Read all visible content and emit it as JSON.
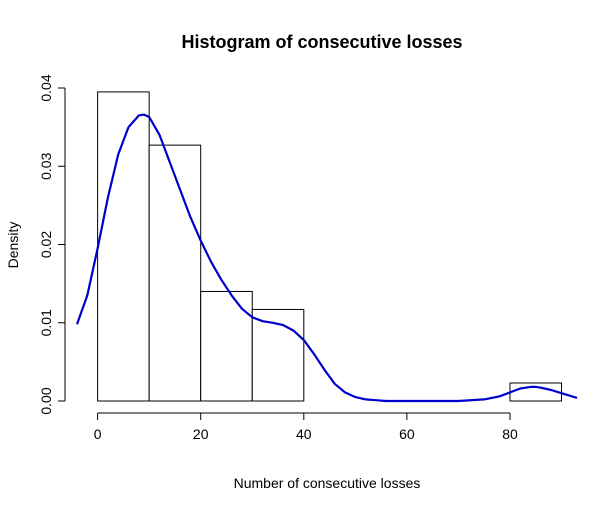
{
  "chart_data": {
    "type": "bar",
    "title": "Histogram of consecutive losses",
    "xlabel": "Number of consecutive losses",
    "ylabel": "Density",
    "xlim": [
      -4,
      93
    ],
    "ylim": [
      0,
      0.04
    ],
    "x_ticks": [
      "0",
      "20",
      "40",
      "60",
      "80"
    ],
    "y_ticks": [
      "0.00",
      "0.01",
      "0.02",
      "0.03",
      "0.04"
    ],
    "bins": [
      {
        "start": 0,
        "end": 10,
        "density": 0.0395
      },
      {
        "start": 10,
        "end": 20,
        "density": 0.0327
      },
      {
        "start": 20,
        "end": 30,
        "density": 0.014
      },
      {
        "start": 30,
        "end": 40,
        "density": 0.0117
      },
      {
        "start": 80,
        "end": 90,
        "density": 0.0023
      }
    ],
    "series": [
      {
        "type": "line",
        "color": "#0000cc",
        "x": [
          -4,
          -2,
          0,
          2,
          4,
          6,
          8,
          9,
          10,
          12,
          14,
          16,
          18,
          20,
          22,
          24,
          26,
          28,
          30,
          32,
          34,
          36,
          38,
          40,
          42,
          44,
          46,
          48,
          50,
          52,
          54,
          56,
          60,
          65,
          70,
          75,
          78,
          80,
          82,
          84,
          85,
          86,
          88,
          90,
          92,
          93
        ],
        "y": [
          0.0098,
          0.0135,
          0.0195,
          0.026,
          0.0315,
          0.035,
          0.0365,
          0.0366,
          0.0363,
          0.034,
          0.0305,
          0.027,
          0.0235,
          0.0205,
          0.0178,
          0.0155,
          0.0135,
          0.0118,
          0.0107,
          0.0102,
          0.01,
          0.0097,
          0.009,
          0.0078,
          0.006,
          0.004,
          0.0022,
          0.0011,
          0.0005,
          0.0002,
          0.0001,
          0.0,
          0.0,
          0.0,
          0.0,
          0.0002,
          0.0006,
          0.0011,
          0.0016,
          0.0018,
          0.0018,
          0.0017,
          0.0014,
          0.001,
          0.0006,
          0.0004
        ]
      }
    ]
  }
}
